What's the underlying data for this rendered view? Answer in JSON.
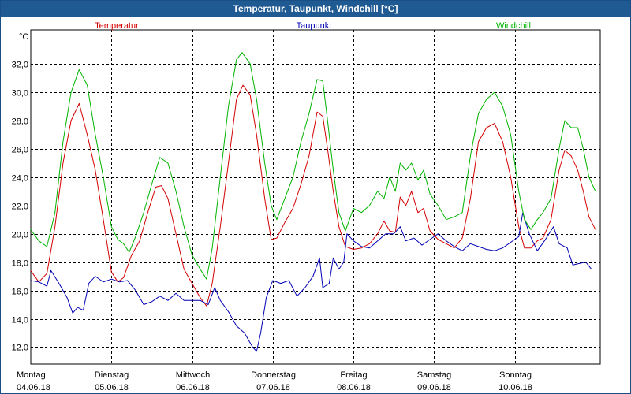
{
  "window": {
    "title": "Temperatur, Taupunkt, Windchill [°C]"
  },
  "chart_data": {
    "type": "line",
    "title": "Temperatur, Taupunkt, Windchill [°C]",
    "ylabel": "°C",
    "ylim": [
      10.8,
      34.4
    ],
    "xlim": [
      0,
      7.06
    ],
    "y_ticks": [
      "32,0",
      "30,0",
      "28,0",
      "26,0",
      "24,0",
      "22,0",
      "20,0",
      "18,0",
      "16,0",
      "14,0",
      "12,0"
    ],
    "y_tick_values": [
      32,
      30,
      28,
      26,
      24,
      22,
      20,
      18,
      16,
      14,
      12
    ],
    "grid": true,
    "x_ticks": [
      {
        "day": "Montag",
        "date": "04.06.18",
        "x": 0
      },
      {
        "day": "Dienstag",
        "date": "05.06.18",
        "x": 1
      },
      {
        "day": "Mittwoch",
        "date": "06.06.18",
        "x": 2
      },
      {
        "day": "Donnerstag",
        "date": "07.06.18",
        "x": 3
      },
      {
        "day": "Freitag",
        "date": "08.06.18",
        "x": 4
      },
      {
        "day": "Samstag",
        "date": "09.06.18",
        "x": 5
      },
      {
        "day": "Sonntag",
        "date": "10.06.18",
        "x": 6
      }
    ],
    "legend": [
      {
        "name": "Temperatur",
        "color": "#d40000",
        "position": "left"
      },
      {
        "name": "Taupunkt",
        "color": "#0000b4",
        "position": "center"
      },
      {
        "name": "Windchill",
        "color": "#00b400",
        "position": "right"
      }
    ],
    "series": [
      {
        "name": "Temperatur",
        "color": "#d40000",
        "points": [
          [
            0.0,
            17.4
          ],
          [
            0.1,
            16.6
          ],
          [
            0.2,
            17.2
          ],
          [
            0.3,
            20.5
          ],
          [
            0.4,
            25.0
          ],
          [
            0.5,
            28.0
          ],
          [
            0.6,
            29.2
          ],
          [
            0.7,
            27.0
          ],
          [
            0.8,
            24.5
          ],
          [
            0.9,
            21.0
          ],
          [
            1.0,
            17.3
          ],
          [
            1.08,
            16.6
          ],
          [
            1.15,
            16.9
          ],
          [
            1.25,
            18.5
          ],
          [
            1.35,
            19.5
          ],
          [
            1.45,
            21.5
          ],
          [
            1.55,
            23.3
          ],
          [
            1.62,
            23.4
          ],
          [
            1.7,
            22.5
          ],
          [
            1.8,
            20.0
          ],
          [
            1.9,
            17.5
          ],
          [
            2.0,
            16.5
          ],
          [
            2.1,
            15.5
          ],
          [
            2.18,
            14.9
          ],
          [
            2.25,
            16.5
          ],
          [
            2.35,
            20.5
          ],
          [
            2.45,
            25.0
          ],
          [
            2.55,
            29.5
          ],
          [
            2.63,
            30.5
          ],
          [
            2.72,
            29.8
          ],
          [
            2.8,
            27.0
          ],
          [
            2.9,
            22.5
          ],
          [
            2.98,
            19.6
          ],
          [
            3.05,
            19.7
          ],
          [
            3.15,
            20.8
          ],
          [
            3.25,
            21.8
          ],
          [
            3.35,
            23.5
          ],
          [
            3.45,
            25.5
          ],
          [
            3.55,
            28.6
          ],
          [
            3.62,
            28.3
          ],
          [
            3.68,
            26.0
          ],
          [
            3.75,
            23.0
          ],
          [
            3.82,
            20.5
          ],
          [
            3.9,
            19.1
          ],
          [
            4.0,
            18.9
          ],
          [
            4.1,
            19.0
          ],
          [
            4.2,
            19.3
          ],
          [
            4.3,
            20.0
          ],
          [
            4.38,
            20.9
          ],
          [
            4.45,
            20.2
          ],
          [
            4.52,
            20.1
          ],
          [
            4.58,
            22.6
          ],
          [
            4.65,
            22.0
          ],
          [
            4.72,
            23.0
          ],
          [
            4.8,
            21.5
          ],
          [
            4.87,
            21.8
          ],
          [
            4.95,
            20.2
          ],
          [
            5.05,
            19.6
          ],
          [
            5.15,
            19.3
          ],
          [
            5.25,
            19.0
          ],
          [
            5.35,
            19.7
          ],
          [
            5.45,
            22.5
          ],
          [
            5.55,
            26.5
          ],
          [
            5.65,
            27.5
          ],
          [
            5.75,
            27.8
          ],
          [
            5.85,
            26.5
          ],
          [
            5.95,
            24.0
          ],
          [
            6.05,
            20.5
          ],
          [
            6.12,
            19.0
          ],
          [
            6.2,
            19.0
          ],
          [
            6.28,
            19.5
          ],
          [
            6.35,
            19.7
          ],
          [
            6.45,
            21.0
          ],
          [
            6.55,
            24.5
          ],
          [
            6.62,
            25.9
          ],
          [
            6.7,
            25.5
          ],
          [
            6.78,
            24.5
          ],
          [
            6.85,
            23.0
          ],
          [
            6.92,
            21.2
          ],
          [
            7.0,
            20.3
          ]
        ]
      },
      {
        "name": "Taupunkt",
        "color": "#0000b4",
        "points": [
          [
            0.0,
            16.7
          ],
          [
            0.1,
            16.6
          ],
          [
            0.2,
            16.3
          ],
          [
            0.25,
            17.4
          ],
          [
            0.35,
            16.5
          ],
          [
            0.45,
            15.5
          ],
          [
            0.52,
            14.4
          ],
          [
            0.58,
            14.8
          ],
          [
            0.65,
            14.6
          ],
          [
            0.72,
            16.5
          ],
          [
            0.8,
            17.0
          ],
          [
            0.9,
            16.6
          ],
          [
            1.0,
            16.8
          ],
          [
            1.1,
            16.6
          ],
          [
            1.2,
            16.7
          ],
          [
            1.3,
            16.0
          ],
          [
            1.4,
            15.0
          ],
          [
            1.5,
            15.2
          ],
          [
            1.6,
            15.6
          ],
          [
            1.7,
            15.3
          ],
          [
            1.8,
            15.8
          ],
          [
            1.9,
            15.3
          ],
          [
            2.0,
            15.3
          ],
          [
            2.1,
            15.3
          ],
          [
            2.2,
            15.0
          ],
          [
            2.28,
            16.2
          ],
          [
            2.35,
            15.3
          ],
          [
            2.45,
            14.5
          ],
          [
            2.55,
            13.5
          ],
          [
            2.65,
            13.0
          ],
          [
            2.75,
            12.0
          ],
          [
            2.8,
            11.7
          ],
          [
            2.85,
            13.0
          ],
          [
            2.92,
            15.5
          ],
          [
            3.0,
            16.7
          ],
          [
            3.1,
            16.5
          ],
          [
            3.2,
            16.7
          ],
          [
            3.3,
            15.6
          ],
          [
            3.4,
            16.2
          ],
          [
            3.5,
            17.0
          ],
          [
            3.58,
            18.3
          ],
          [
            3.62,
            16.2
          ],
          [
            3.7,
            16.5
          ],
          [
            3.75,
            18.3
          ],
          [
            3.82,
            17.5
          ],
          [
            3.88,
            18.0
          ],
          [
            3.92,
            20.0
          ],
          [
            4.0,
            19.5
          ],
          [
            4.1,
            19.1
          ],
          [
            4.2,
            19.0
          ],
          [
            4.3,
            19.5
          ],
          [
            4.4,
            20.0
          ],
          [
            4.5,
            20.0
          ],
          [
            4.58,
            20.5
          ],
          [
            4.65,
            19.5
          ],
          [
            4.75,
            19.7
          ],
          [
            4.85,
            19.2
          ],
          [
            4.95,
            19.6
          ],
          [
            5.05,
            20.0
          ],
          [
            5.15,
            19.5
          ],
          [
            5.25,
            19.1
          ],
          [
            5.35,
            18.8
          ],
          [
            5.45,
            19.3
          ],
          [
            5.55,
            19.1
          ],
          [
            5.65,
            18.9
          ],
          [
            5.75,
            18.8
          ],
          [
            5.85,
            19.0
          ],
          [
            5.95,
            19.4
          ],
          [
            6.05,
            19.8
          ],
          [
            6.1,
            21.5
          ],
          [
            6.18,
            20.0
          ],
          [
            6.28,
            18.8
          ],
          [
            6.38,
            19.6
          ],
          [
            6.48,
            20.5
          ],
          [
            6.55,
            19.3
          ],
          [
            6.65,
            19.0
          ],
          [
            6.72,
            17.8
          ],
          [
            6.8,
            17.9
          ],
          [
            6.88,
            18.0
          ],
          [
            6.95,
            17.5
          ]
        ]
      },
      {
        "name": "Windchill",
        "color": "#00b400",
        "points": [
          [
            0.0,
            20.3
          ],
          [
            0.1,
            19.5
          ],
          [
            0.2,
            19.1
          ],
          [
            0.3,
            21.5
          ],
          [
            0.4,
            26.5
          ],
          [
            0.5,
            30.0
          ],
          [
            0.6,
            31.6
          ],
          [
            0.7,
            30.5
          ],
          [
            0.8,
            27.0
          ],
          [
            0.9,
            24.0
          ],
          [
            1.0,
            20.5
          ],
          [
            1.08,
            19.6
          ],
          [
            1.15,
            19.3
          ],
          [
            1.22,
            18.7
          ],
          [
            1.3,
            19.8
          ],
          [
            1.4,
            21.5
          ],
          [
            1.5,
            23.5
          ],
          [
            1.6,
            25.4
          ],
          [
            1.7,
            25.0
          ],
          [
            1.8,
            23.0
          ],
          [
            1.9,
            20.5
          ],
          [
            2.0,
            18.5
          ],
          [
            2.1,
            17.5
          ],
          [
            2.18,
            16.8
          ],
          [
            2.25,
            19.0
          ],
          [
            2.35,
            24.0
          ],
          [
            2.45,
            29.0
          ],
          [
            2.55,
            32.3
          ],
          [
            2.62,
            32.8
          ],
          [
            2.72,
            32.0
          ],
          [
            2.8,
            29.5
          ],
          [
            2.9,
            25.0
          ],
          [
            2.98,
            22.0
          ],
          [
            3.05,
            21.0
          ],
          [
            3.15,
            22.5
          ],
          [
            3.25,
            24.0
          ],
          [
            3.35,
            26.5
          ],
          [
            3.45,
            28.5
          ],
          [
            3.55,
            30.9
          ],
          [
            3.62,
            30.8
          ],
          [
            3.68,
            28.0
          ],
          [
            3.75,
            24.5
          ],
          [
            3.82,
            21.5
          ],
          [
            3.9,
            20.2
          ],
          [
            4.0,
            21.8
          ],
          [
            4.1,
            21.5
          ],
          [
            4.2,
            22.0
          ],
          [
            4.3,
            23.0
          ],
          [
            4.38,
            22.5
          ],
          [
            4.45,
            24.0
          ],
          [
            4.52,
            23.0
          ],
          [
            4.58,
            25.0
          ],
          [
            4.65,
            24.5
          ],
          [
            4.72,
            25.0
          ],
          [
            4.8,
            23.8
          ],
          [
            4.87,
            24.5
          ],
          [
            4.95,
            22.8
          ],
          [
            5.05,
            22.0
          ],
          [
            5.15,
            21.0
          ],
          [
            5.25,
            21.2
          ],
          [
            5.35,
            21.5
          ],
          [
            5.45,
            25.5
          ],
          [
            5.55,
            28.5
          ],
          [
            5.65,
            29.5
          ],
          [
            5.75,
            30.0
          ],
          [
            5.85,
            29.0
          ],
          [
            5.95,
            27.0
          ],
          [
            6.05,
            23.0
          ],
          [
            6.12,
            21.0
          ],
          [
            6.2,
            20.3
          ],
          [
            6.28,
            21.0
          ],
          [
            6.35,
            21.5
          ],
          [
            6.45,
            22.5
          ],
          [
            6.55,
            26.0
          ],
          [
            6.62,
            28.0
          ],
          [
            6.7,
            27.5
          ],
          [
            6.78,
            27.5
          ],
          [
            6.85,
            26.0
          ],
          [
            6.92,
            24.0
          ],
          [
            7.0,
            23.0
          ]
        ]
      }
    ]
  }
}
